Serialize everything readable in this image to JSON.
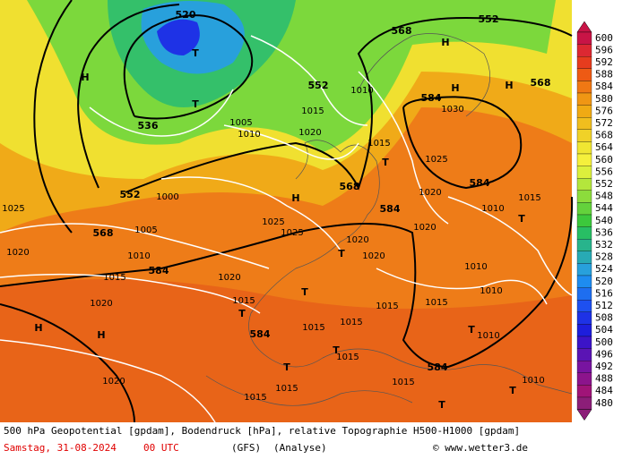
{
  "colorbar": {
    "levels": [
      600,
      596,
      592,
      588,
      584,
      580,
      576,
      572,
      568,
      564,
      560,
      556,
      552,
      548,
      544,
      540,
      536,
      532,
      528,
      524,
      520,
      516,
      512,
      508,
      504,
      500,
      496,
      492,
      488,
      484,
      480
    ],
    "colors": [
      "#c81446",
      "#dc2832",
      "#e63c1e",
      "#ee5a14",
      "#f07814",
      "#f09614",
      "#f0aa14",
      "#f0be1e",
      "#f0d228",
      "#f0e632",
      "#f5f03c",
      "#dcf03c",
      "#b4e63c",
      "#8cdc3c",
      "#64d23c",
      "#3cc83c",
      "#28be64",
      "#28b48c",
      "#28aab4",
      "#28a0dc",
      "#1e8cf0",
      "#1e6ef0",
      "#1e50f0",
      "#1e32e6",
      "#1e1edc",
      "#3c14c8",
      "#5a14b4",
      "#7814a0",
      "#8c148c",
      "#a01478",
      "#8c1e78"
    ]
  },
  "map_labels": [
    "520",
    "536",
    "552",
    "568",
    "584",
    "584",
    "584",
    "584",
    "584",
    "584",
    "568",
    "568",
    "568",
    "552",
    "552",
    "H",
    "H",
    "H",
    "H",
    "H",
    "H",
    "H",
    "T",
    "T",
    "T",
    "T",
    "T",
    "T",
    "T",
    "T",
    "T",
    "T",
    "T",
    "T",
    "1020",
    "1025",
    "1010",
    "1015",
    "1020",
    "1020",
    "1005",
    "1000",
    "1025",
    "1025",
    "1020",
    "1015",
    "1015",
    "1015",
    "1015",
    "1015",
    "1015",
    "1020",
    "1020",
    "1020",
    "1025",
    "1030",
    "1015",
    "1010",
    "1015",
    "1020",
    "1010",
    "1005",
    "1010",
    "1015",
    "1010",
    "1010",
    "1015",
    "1010",
    "1015",
    "1015",
    "1020",
    "1010"
  ],
  "footer": {
    "line1": "500 hPa Geopotential [gpdam], Bodendruck [hPa], relative Topographie H500-H1000 [gpdam]",
    "date": "Samstag, 31-08-2024",
    "time": "00 UTC",
    "model": "(GFS)",
    "run": "(Analyse)",
    "credit": "© www.wetter3.de"
  }
}
